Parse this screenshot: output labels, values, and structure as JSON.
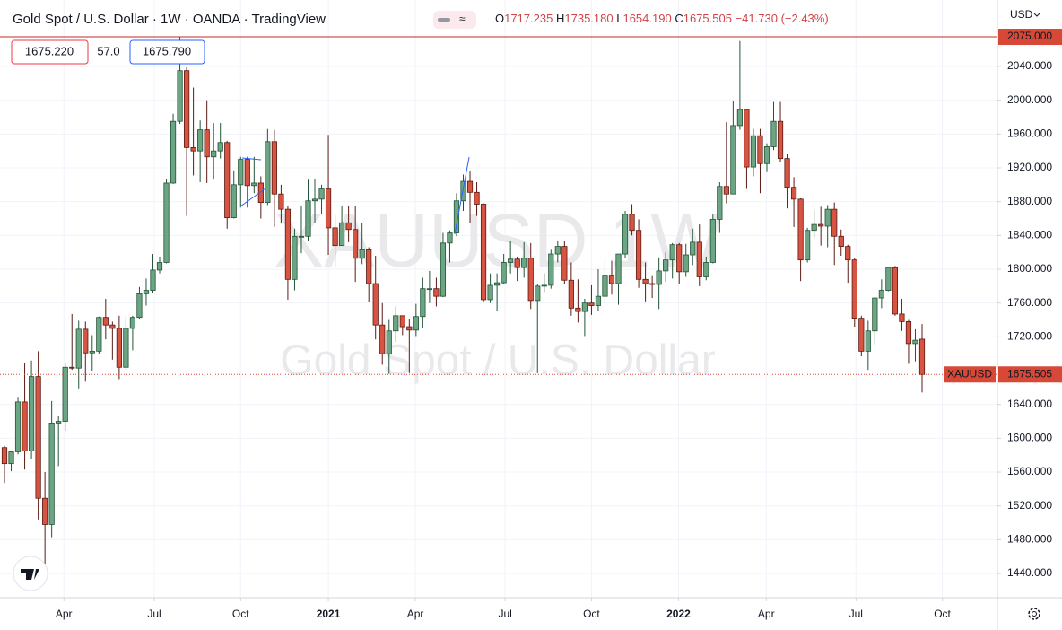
{
  "chart_data": {
    "type": "candlestick",
    "title": "Gold Spot / U.S. Dollar · 1W · OANDA · TradingView",
    "ohlc_prefixes": [
      "O",
      "H",
      "L",
      "C"
    ],
    "last_labels": {
      "open": "1717.235",
      "high": "1735.180",
      "low": "1654.190",
      "close": "1675.505"
    },
    "change": "−41.730",
    "change_pct": "(−2.43%)",
    "bid": "1675.220",
    "spread": "57.0",
    "ask": "1675.790",
    "currency": "USD",
    "symbol": "XAUUSD",
    "watermark": "XAUUSD 1W",
    "watermark_sub": "Gold Spot / U.S. Dollar",
    "high_line": {
      "value": 2075,
      "label": "2075.000"
    },
    "up_color": "#6ba583",
    "up_border": "#225437",
    "down_color": "#d75442",
    "down_border": "#5b1a13",
    "grid": true,
    "open": [
      1589,
      1570,
      1584,
      1643,
      1585,
      1673,
      1529,
      1498,
      1618,
      1620,
      1684,
      1683,
      1729,
      1701,
      1703,
      1743,
      1734,
      1730,
      1684,
      1730,
      1743,
      1771,
      1775,
      1799,
      1808,
      1902,
      1975,
      2035,
      1944,
      1940,
      1965,
      1933,
      1940,
      1950,
      1861,
      1900,
      1930,
      1899,
      1902,
      1879,
      1951,
      1889,
      1871,
      1788,
      1839,
      1839,
      1881,
      1883,
      1895,
      1849,
      1828,
      1855,
      1847,
      1813,
      1823,
      1783,
      1734,
      1700,
      1727,
      1745,
      1732,
      1728,
      1744,
      1777,
      1777,
      1768,
      1831,
      1843,
      1881,
      1904,
      1891,
      1877,
      1764,
      1781,
      1784,
      1808,
      1812,
      1802,
      1813,
      1763,
      1780,
      1781,
      1818,
      1827,
      1787,
      1754,
      1750,
      1760,
      1757,
      1768,
      1793,
      1783,
      1818,
      1865,
      1846,
      1788,
      1783,
      1782,
      1798,
      1811,
      1829,
      1797,
      1817,
      1832,
      1791,
      1808,
      1859,
      1898,
      1889,
      1970,
      1989,
      1921,
      1958,
      1925,
      1945,
      1975,
      1931,
      1897,
      1883,
      1811,
      1846,
      1853,
      1851,
      1871,
      1839,
      1827,
      1811,
      1742,
      1703,
      1727,
      1766,
      1775,
      1802,
      1747,
      1738,
      1712,
      1717.235
    ],
    "high": [
      1591,
      1584,
      1649,
      1689,
      1692,
      1703,
      1560,
      1644,
      1626,
      1690,
      1747,
      1739,
      1738,
      1722,
      1744,
      1765,
      1738,
      1745,
      1744,
      1745,
      1779,
      1789,
      1818,
      1815,
      1907,
      1984,
      2075,
      2039,
      2015,
      1976,
      2000,
      1973,
      1973,
      1952,
      1917,
      1933,
      1933,
      1933,
      1910,
      1966,
      1965,
      1900,
      1875,
      1848,
      1875,
      1906,
      1907,
      1900,
      1959,
      1864,
      1875,
      1875,
      1875,
      1855,
      1826,
      1816,
      1760,
      1740,
      1756,
      1745,
      1741,
      1759,
      1790,
      1798,
      1790,
      1843,
      1846,
      1890,
      1912,
      1916,
      1903,
      1878,
      1795,
      1795,
      1818,
      1834,
      1815,
      1832,
      1831,
      1782,
      1795,
      1823,
      1834,
      1834,
      1808,
      1788,
      1765,
      1781,
      1800,
      1814,
      1810,
      1818,
      1869,
      1877,
      1859,
      1808,
      1793,
      1814,
      1820,
      1831,
      1831,
      1830,
      1848,
      1853,
      1815,
      1865,
      1903,
      1974,
      1999,
      2070,
      1990,
      1966,
      1966,
      1949,
      1998,
      1998,
      1936,
      1909,
      1884,
      1849,
      1870,
      1874,
      1876,
      1879,
      1847,
      1829,
      1813,
      1745,
      1739,
      1766,
      1788,
      1802,
      1804,
      1765,
      1740,
      1729,
      1735.18
    ],
    "low": [
      1547,
      1561,
      1581,
      1563,
      1576,
      1504,
      1451,
      1483,
      1567,
      1609,
      1681,
      1659,
      1667,
      1680,
      1700,
      1717,
      1693,
      1670,
      1681,
      1704,
      1741,
      1757,
      1772,
      1795,
      1807,
      1901,
      1972,
      1863,
      1911,
      1903,
      1902,
      1906,
      1931,
      1848,
      1860,
      1873,
      1873,
      1890,
      1860,
      1876,
      1850,
      1854,
      1764,
      1775,
      1819,
      1833,
      1855,
      1865,
      1817,
      1802,
      1828,
      1832,
      1785,
      1806,
      1761,
      1717,
      1687,
      1676,
      1714,
      1722,
      1677,
      1721,
      1730,
      1760,
      1756,
      1767,
      1808,
      1839,
      1869,
      1855,
      1863,
      1761,
      1760,
      1750,
      1782,
      1795,
      1786,
      1790,
      1753,
      1677,
      1773,
      1777,
      1808,
      1782,
      1745,
      1737,
      1721,
      1746,
      1751,
      1760,
      1770,
      1758,
      1813,
      1840,
      1778,
      1762,
      1766,
      1753,
      1785,
      1789,
      1783,
      1791,
      1805,
      1780,
      1787,
      1807,
      1843,
      1878,
      1889,
      1965,
      1895,
      1910,
      1890,
      1915,
      1941,
      1927,
      1872,
      1850,
      1786,
      1808,
      1837,
      1828,
      1826,
      1805,
      1816,
      1784,
      1732,
      1697,
      1681,
      1711,
      1754,
      1774,
      1745,
      1727,
      1688,
      1691,
      1654.19
    ],
    "close": [
      1570,
      1584,
      1643,
      1585,
      1673,
      1529,
      1498,
      1618,
      1620,
      1684,
      1683,
      1729,
      1701,
      1703,
      1743,
      1734,
      1730,
      1684,
      1730,
      1743,
      1771,
      1775,
      1799,
      1808,
      1902,
      1975,
      2035,
      1944,
      1940,
      1965,
      1933,
      1940,
      1950,
      1861,
      1900,
      1930,
      1899,
      1902,
      1879,
      1951,
      1889,
      1871,
      1788,
      1839,
      1839,
      1881,
      1883,
      1895,
      1849,
      1828,
      1855,
      1847,
      1813,
      1823,
      1783,
      1734,
      1700,
      1727,
      1745,
      1732,
      1728,
      1744,
      1777,
      1777,
      1768,
      1831,
      1843,
      1881,
      1904,
      1891,
      1877,
      1764,
      1781,
      1784,
      1808,
      1812,
      1802,
      1813,
      1763,
      1780,
      1781,
      1818,
      1827,
      1787,
      1754,
      1750,
      1760,
      1757,
      1768,
      1793,
      1783,
      1818,
      1865,
      1846,
      1788,
      1783,
      1782,
      1798,
      1811,
      1829,
      1797,
      1817,
      1832,
      1791,
      1808,
      1859,
      1898,
      1889,
      1970,
      1989,
      1921,
      1958,
      1925,
      1945,
      1975,
      1931,
      1897,
      1883,
      1811,
      1846,
      1853,
      1851,
      1871,
      1839,
      1827,
      1811,
      1742,
      1703,
      1727,
      1766,
      1775,
      1802,
      1747,
      1738,
      1712,
      1716,
      1675.505
    ],
    "ylim": [
      1411.4,
      2086.7
    ],
    "yticks": [
      {
        "value": 1440,
        "label": "1440.000"
      },
      {
        "value": 1480,
        "label": "1480.000"
      },
      {
        "value": 1520,
        "label": "1520.000"
      },
      {
        "value": 1560,
        "label": "1560.000"
      },
      {
        "value": 1600,
        "label": "1600.000"
      },
      {
        "value": 1640,
        "label": "1640.000"
      },
      {
        "value": 1720,
        "label": "1720.000"
      },
      {
        "value": 1760,
        "label": "1760.000"
      },
      {
        "value": 1800,
        "label": "1800.000"
      },
      {
        "value": 1840,
        "label": "1840.000"
      },
      {
        "value": 1880,
        "label": "1880.000"
      },
      {
        "value": 1920,
        "label": "1920.000"
      },
      {
        "value": 1960,
        "label": "1960.000"
      },
      {
        "value": 2000,
        "label": "2000.000"
      },
      {
        "value": 2040,
        "label": "2040.000"
      }
    ],
    "xticks": [
      {
        "value": 8.8,
        "label": "Apr"
      },
      {
        "value": 22.2,
        "label": "Jul"
      },
      {
        "value": 35,
        "label": "Oct"
      },
      {
        "value": 48,
        "label": "2021"
      },
      {
        "value": 60.9,
        "label": "Apr"
      },
      {
        "value": 74.2,
        "label": "Jul"
      },
      {
        "value": 87,
        "label": "Oct"
      },
      {
        "value": 99.9,
        "label": "2022"
      },
      {
        "value": 112.9,
        "label": "Apr"
      },
      {
        "value": 126.2,
        "label": "Jul"
      },
      {
        "value": 139,
        "label": "Oct"
      }
    ]
  }
}
